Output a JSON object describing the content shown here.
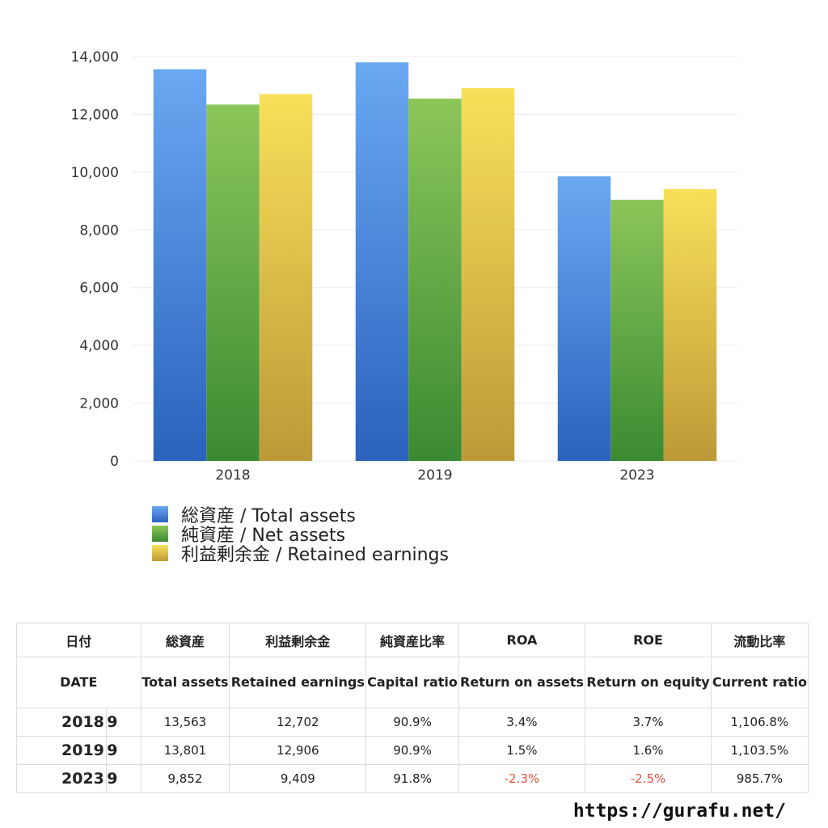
{
  "chart_data": {
    "type": "bar",
    "categories": [
      "2018",
      "2019",
      "2023"
    ],
    "series": [
      {
        "name": "総資産 / Total assets",
        "values": [
          13563,
          13801,
          9852
        ],
        "color_top": "#6aa8f2",
        "color_bottom": "#2b62bd"
      },
      {
        "name": "純資産 / Net assets",
        "values": [
          12339,
          12545,
          9043
        ],
        "color_top": "#8cc65a",
        "color_bottom": "#3a8a32"
      },
      {
        "name": "利益剰余金 / Retained earnings",
        "values": [
          12702,
          12906,
          9409
        ],
        "color_top": "#f8e05a",
        "color_bottom": "#bb9a37"
      }
    ],
    "yticks": [
      "0",
      "2,000",
      "4,000",
      "6,000",
      "8,000",
      "10,000",
      "12,000",
      "14,000"
    ],
    "ylim": [
      0,
      14000
    ],
    "grid": true,
    "legend_position": "bottom-left"
  },
  "table": {
    "header_jp": [
      "日付",
      "総資産",
      "利益剰余金",
      "純資産比率",
      "ROA",
      "ROE",
      "流動比率"
    ],
    "header_en": [
      "DATE",
      "Total assets",
      "Retained earnings",
      "Capital ratio",
      "Return on assets",
      "Return on equity",
      "Current ratio"
    ],
    "rows": [
      {
        "year": "2018",
        "month": "9",
        "cells": [
          "13,563",
          "12,702",
          "90.9%",
          "3.4%",
          "3.7%",
          "1,106.8%"
        ],
        "neg": [
          false,
          false,
          false,
          false,
          false,
          false
        ]
      },
      {
        "year": "2019",
        "month": "9",
        "cells": [
          "13,801",
          "12,906",
          "90.9%",
          "1.5%",
          "1.6%",
          "1,103.5%"
        ],
        "neg": [
          false,
          false,
          false,
          false,
          false,
          false
        ]
      },
      {
        "year": "2023",
        "month": "9",
        "cells": [
          "9,852",
          "9,409",
          "91.8%",
          "-2.3%",
          "-2.5%",
          "985.7%"
        ],
        "neg": [
          false,
          false,
          false,
          true,
          true,
          false
        ]
      }
    ],
    "negative_color": "#e0533e"
  },
  "footer_url": "https://gurafu.net/"
}
